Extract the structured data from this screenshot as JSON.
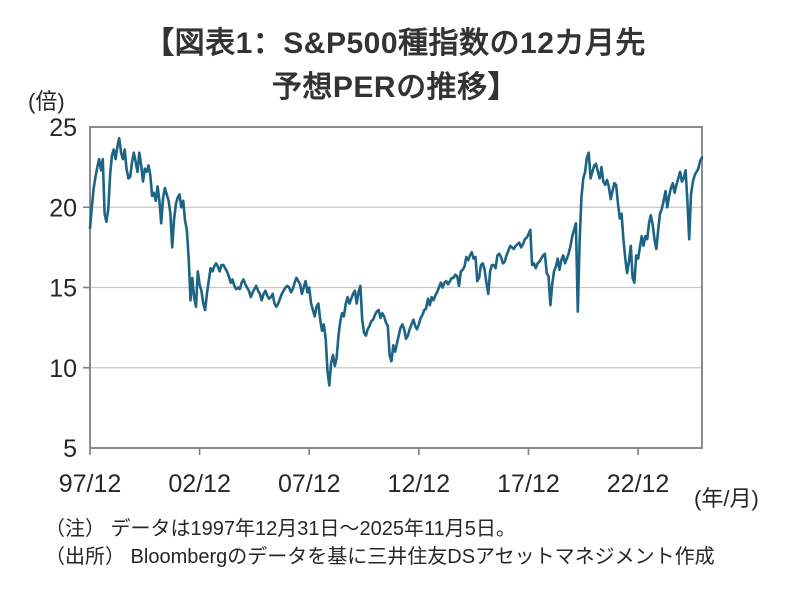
{
  "title": {
    "line1": "【図表1：S&P500種指数の12カ月先",
    "line2": "予想PERの推移】"
  },
  "notes": {
    "note": "（注） データは1997年12月31日～2025年11月5日。",
    "source": "（出所） Bloombergのデータを基に三井住友DSアセットマネジメント作成"
  },
  "colors": {
    "line": "#1D6384",
    "grid": "#C8C8C8",
    "frame": "#7F7F7F",
    "text": "#262626"
  },
  "chart_data": {
    "type": "line",
    "title": "S&P500種指数の12カ月先予想PERの推移",
    "unit_label": "(倍)",
    "x_axis_unit": "(年/月)",
    "ylabel": "予想PER（倍）",
    "ylim": [
      5,
      25
    ],
    "yticks": [
      25,
      20,
      15,
      10,
      5
    ],
    "grid": "horizontal-only",
    "legend_position": "none",
    "x_range": {
      "start": "1997/12",
      "end": "2025/11",
      "frequency": "monthly"
    },
    "xticks": [
      {
        "label": "97/12",
        "month_index": 0
      },
      {
        "label": "02/12",
        "month_index": 60
      },
      {
        "label": "07/12",
        "month_index": 120
      },
      {
        "label": "12/12",
        "month_index": 180
      },
      {
        "label": "17/12",
        "month_index": 240
      },
      {
        "label": "22/12",
        "month_index": 300
      }
    ],
    "series": [
      {
        "name": "S&P500 12カ月先予想PER",
        "color": "#1D6384",
        "values": [
          18.7,
          20.0,
          21.2,
          21.9,
          22.5,
          23.0,
          22.3,
          23.0,
          19.6,
          19.1,
          19.9,
          22.0,
          23.2,
          23.6,
          23.0,
          23.8,
          24.3,
          23.4,
          23.0,
          23.6,
          22.4,
          21.8,
          21.9,
          22.8,
          23.4,
          22.8,
          22.2,
          23.4,
          22.6,
          21.6,
          22.4,
          22.2,
          22.6,
          22.0,
          20.7,
          20.9,
          20.4,
          21.3,
          20.4,
          19.0,
          20.6,
          21.2,
          20.8,
          20.4,
          19.6,
          17.5,
          19.2,
          20.2,
          20.6,
          20.8,
          20.0,
          20.4,
          19.2,
          18.6,
          16.8,
          14.2,
          15.6,
          14.4,
          13.8,
          16.0,
          15.2,
          14.8,
          14.0,
          13.6,
          14.6,
          15.4,
          16.2,
          16.0,
          16.3,
          16.5,
          16.3,
          16.0,
          16.4,
          16.4,
          16.2,
          16.0,
          15.7,
          15.3,
          15.5,
          15.1,
          14.9,
          15.0,
          14.9,
          15.3,
          15.5,
          15.2,
          15.0,
          14.8,
          14.4,
          14.7,
          14.9,
          15.1,
          14.8,
          14.6,
          14.2,
          14.6,
          14.8,
          14.5,
          14.3,
          14.4,
          14.6,
          14.0,
          13.8,
          14.0,
          14.3,
          14.6,
          14.8,
          15.0,
          15.1,
          15.0,
          14.7,
          14.9,
          15.3,
          15.6,
          15.4,
          15.2,
          14.6,
          15.0,
          15.4,
          14.7,
          15.0,
          14.0,
          13.6,
          13.2,
          13.8,
          14.0,
          13.0,
          12.3,
          12.7,
          11.8,
          9.8,
          8.9,
          10.3,
          10.8,
          10.1,
          10.6,
          12.0,
          12.9,
          13.4,
          13.2,
          14.0,
          14.4,
          14.0,
          14.3,
          14.6,
          14.8,
          14.0,
          14.7,
          15.1,
          13.0,
          12.2,
          12.0,
          12.4,
          12.6,
          12.9,
          13.0,
          13.3,
          13.5,
          13.6,
          13.1,
          13.4,
          13.2,
          12.8,
          12.6,
          10.8,
          10.4,
          11.4,
          11.0,
          11.5,
          12.0,
          12.5,
          12.7,
          12.4,
          11.8,
          12.0,
          12.4,
          12.7,
          13.0,
          12.6,
          12.4,
          12.7,
          13.1,
          13.3,
          13.6,
          13.7,
          14.3,
          13.9,
          14.4,
          14.2,
          14.5,
          14.7,
          15.0,
          15.3,
          15.0,
          15.3,
          15.4,
          15.2,
          15.4,
          15.6,
          15.6,
          15.8,
          15.7,
          15.1,
          16.0,
          16.1,
          16.3,
          16.9,
          16.7,
          17.0,
          17.2,
          16.8,
          16.9,
          15.4,
          15.6,
          16.4,
          16.5,
          16.1,
          15.3,
          14.6,
          16.0,
          16.4,
          16.4,
          16.2,
          17.0,
          17.1,
          16.9,
          16.5,
          16.6,
          17.0,
          17.3,
          17.6,
          17.5,
          17.4,
          17.6,
          17.7,
          17.8,
          17.5,
          17.7,
          18.0,
          18.1,
          18.3,
          18.6,
          16.4,
          16.5,
          16.2,
          16.5,
          16.6,
          16.8,
          17.0,
          17.1,
          15.9,
          15.7,
          13.9,
          15.2,
          16.0,
          16.3,
          16.8,
          16.1,
          16.7,
          17.0,
          16.5,
          16.8,
          17.1,
          17.6,
          18.2,
          18.6,
          19.0,
          13.5,
          17.8,
          20.6,
          21.8,
          22.2,
          23.1,
          23.4,
          21.8,
          22.2,
          22.6,
          22.7,
          22.2,
          21.8,
          22.5,
          21.6,
          21.4,
          21.7,
          21.3,
          20.5,
          21.0,
          21.5,
          21.4,
          20.2,
          19.3,
          19.6,
          18.0,
          16.8,
          15.9,
          16.6,
          17.6,
          15.6,
          15.3,
          17.0,
          16.8,
          17.5,
          18.2,
          17.6,
          18.2,
          18.0,
          19.0,
          19.5,
          18.9,
          18.0,
          17.4,
          18.6,
          19.6,
          19.9,
          20.4,
          21.0,
          20.0,
          20.7,
          21.2,
          21.5,
          20.9,
          21.4,
          21.8,
          22.2,
          21.6,
          21.8,
          22.3,
          20.4,
          18.0,
          20.8,
          21.6,
          22.0,
          22.2,
          22.4,
          22.9,
          23.1
        ]
      }
    ]
  }
}
